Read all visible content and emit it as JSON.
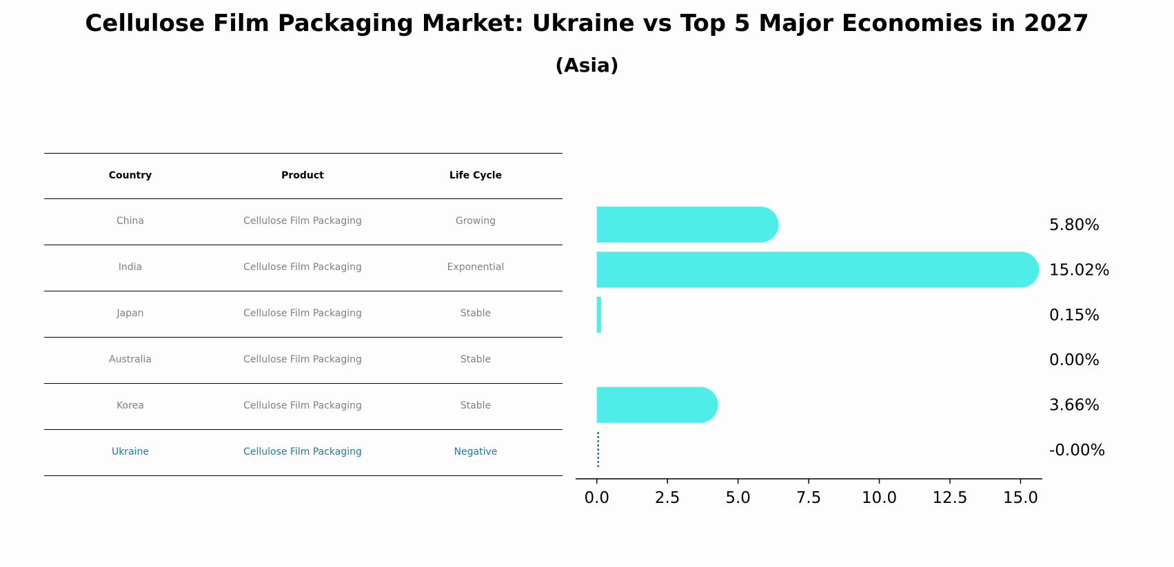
{
  "title": "Cellulose Film Packaging Market: Ukraine vs Top 5 Major Economies in 2027",
  "subtitle": "(Asia)",
  "table": {
    "headers": [
      "Country",
      "Product",
      "Life Cycle"
    ],
    "rows": [
      [
        "China",
        "Cellulose Film Packaging",
        "Growing"
      ],
      [
        "India",
        "Cellulose Film Packaging",
        "Exponential"
      ],
      [
        "Japan",
        "Cellulose Film Packaging",
        "Stable"
      ],
      [
        "Australia",
        "Cellulose Film Packaging",
        "Stable"
      ],
      [
        "Korea",
        "Cellulose Film Packaging",
        "Stable"
      ],
      [
        "Ukraine",
        "Cellulose Film Packaging",
        "Negative"
      ]
    ],
    "highlight_row": 5
  },
  "chart_data": {
    "type": "bar",
    "orientation": "horizontal",
    "categories": [
      "China",
      "India",
      "Japan",
      "Australia",
      "Korea",
      "Ukraine"
    ],
    "values": [
      5.8,
      15.02,
      0.15,
      0.0,
      3.66,
      -0.0
    ],
    "value_labels": [
      "5.80%",
      "15.02%",
      "0.15%",
      "0.00%",
      "3.66%",
      "-0.00%"
    ],
    "xticks": [
      "0.0",
      "2.5",
      "5.0",
      "7.5",
      "10.0",
      "12.5",
      "15.0"
    ],
    "xtick_values": [
      0,
      2.5,
      5,
      7.5,
      10,
      12.5,
      15
    ],
    "xlim": [
      -0.75,
      15.77
    ],
    "bar_color": "#4eede8",
    "highlight_line_color": "#1f77b4",
    "xlabel": "",
    "ylabel": ""
  }
}
